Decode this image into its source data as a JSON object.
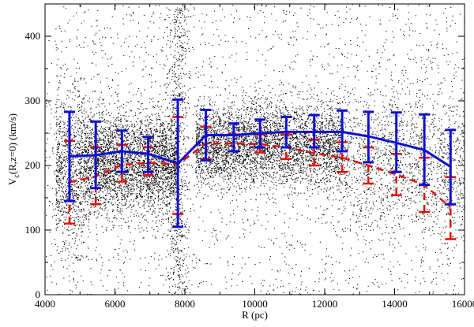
{
  "chart_data": {
    "type": "scatter",
    "title": "",
    "xlabel": "R (pc)",
    "ylabel_main": "V",
    "ylabel_sub": "c",
    "ylabel_rest": "(R,z=0) (km/s)",
    "xlim": [
      4000,
      16000
    ],
    "ylim": [
      0,
      450
    ],
    "x_ticks": [
      4000,
      6000,
      8000,
      10000,
      12000,
      14000,
      16000
    ],
    "x_tick_labels": [
      "4000",
      "6000",
      "8000",
      "10000",
      "12000",
      "14000",
      "16000"
    ],
    "y_ticks": [
      0,
      100,
      200,
      300,
      400
    ],
    "y_tick_labels": [
      "0",
      "100",
      "200",
      "300",
      "400"
    ],
    "grid": false,
    "legend": "none",
    "scatter_color": "#000000",
    "series": [
      {
        "style": "solid",
        "color": "#1010d0",
        "x": [
          4700,
          5450,
          6200,
          6950,
          7800,
          8600,
          9400,
          10150,
          10900,
          11700,
          12500,
          13250,
          14050,
          14850,
          15600
        ],
        "y": [
          214,
          216,
          222,
          218,
          203,
          247,
          247,
          250,
          252,
          252,
          252,
          245,
          235,
          224,
          198
        ],
        "err_low": [
          145,
          165,
          190,
          190,
          105,
          208,
          222,
          228,
          228,
          228,
          222,
          205,
          190,
          170,
          140
        ],
        "err_high": [
          283,
          268,
          254,
          244,
          302,
          286,
          265,
          271,
          275,
          278,
          285,
          283,
          282,
          279,
          255
        ]
      },
      {
        "style": "dashed",
        "color": "#e01010",
        "x": [
          4700,
          5450,
          6200,
          6950,
          7800,
          8600,
          9400,
          10150,
          10900,
          11700,
          12500,
          13250,
          14050,
          14850,
          15600
        ],
        "y": [
          174,
          183,
          201,
          204,
          202,
          234,
          234,
          233,
          228,
          219,
          212,
          200,
          186,
          170,
          135
        ],
        "err_low": [
          110,
          140,
          175,
          185,
          125,
          210,
          222,
          220,
          210,
          200,
          190,
          172,
          154,
          128,
          86
        ],
        "err_high": [
          238,
          228,
          232,
          228,
          275,
          260,
          248,
          248,
          248,
          240,
          236,
          228,
          218,
          212,
          182
        ]
      }
    ]
  }
}
